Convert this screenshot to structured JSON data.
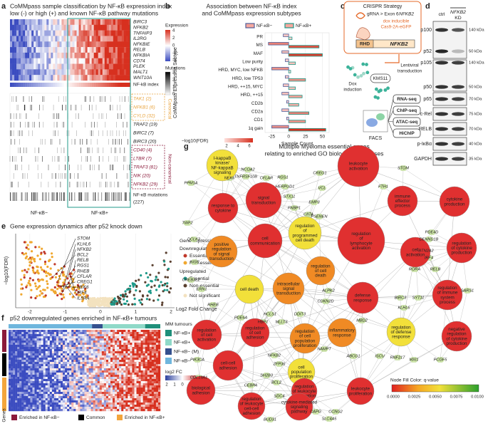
{
  "panel_a": {
    "letter": "a",
    "title": "CoMMpass sample classification by NF-κB expression index",
    "subtitle": "low (-) or high (+) and known NF-κB pathway mutations",
    "genes": [
      "BIRC3",
      "NFKB2",
      "TNFAIP3",
      "IL2RG",
      "NFKBIE",
      "RELB",
      "NFKBIA",
      "CD74",
      "PLEK",
      "MALT1",
      "WNT10A"
    ],
    "index_label": "NF-kB index",
    "expression_title": "Expression",
    "expression_ticks": [
      4,
      2,
      0,
      -2,
      -4
    ],
    "mutation_title": "Mutations",
    "mutation_ticks": [
      3,
      2,
      1,
      0
    ],
    "canonical_label": "Canonical",
    "canonical_genes": [
      "TAK1 (2)",
      "NFKB1 (6)",
      "CYLD (32)"
    ],
    "other_genes": [
      "TRAF2 (19)",
      "BIRC2 (7)",
      "BIRC3 (20)"
    ],
    "noncanonical_label": "Non-canonical",
    "noncanonical_genes": [
      "CD40 (4)",
      "LTBR (7)",
      "TRAF3 (81)",
      "NIK (20)",
      "NFKB2 (29)"
    ],
    "mutations_label": "NF-κB mutations",
    "mutations_total": "(227)",
    "groups": [
      "NF-κB−",
      "NF-κB+"
    ]
  },
  "panel_b": {
    "letter": "b",
    "title": [
      "Association between NF-κB index",
      "and CoMMpass expression subtypes"
    ],
    "y_label": "CoMMpass Expression Subtype",
    "x_label": "Sample Count",
    "categories": [
      "PR",
      "MS",
      "MAF",
      "Low purity",
      "HRD, MYC, low NFKB",
      "HRD, low TP53",
      "HRD, ++15, MYC",
      "HRD, ++15",
      "CD2b",
      "CD2a",
      "CD1",
      "1q gain"
    ],
    "series": [
      {
        "name": "NF-κB−",
        "color": "#4f5f9a",
        "values": [
          -8,
          -30,
          -10,
          -5,
          -25,
          -5,
          -8,
          -10,
          -3,
          -10,
          -3,
          -25
        ]
      },
      {
        "name": "NF-κB+",
        "color": "#1f9a8a",
        "values": [
          5,
          45,
          50,
          10,
          3,
          25,
          10,
          20,
          15,
          30,
          25,
          55
        ]
      }
    ],
    "xlim": [
      -35,
      60
    ],
    "xticks": [
      -25,
      0,
      25,
      50
    ],
    "fdr_label": "−log10(FDR)",
    "fdr_ticks": [
      2,
      4,
      6
    ]
  },
  "panel_c": {
    "letter": "c",
    "title": "CRISPR Strategy",
    "grna": "gRNA > Exon 6",
    "grna_gene": "NFKB2",
    "cas9": [
      "dox inducible",
      "Cas9-2A-eGFP"
    ],
    "domain": "RHD",
    "gene": "NFKB2",
    "dox": [
      "Dox",
      "induction"
    ],
    "lenti": [
      "Lentiviral",
      "transduction"
    ],
    "cell_line": "KMS11",
    "assays": [
      "RNA-seq",
      "ChIP-seq",
      "ATAC-seq",
      "HiChIP"
    ],
    "facs": "FACS"
  },
  "panel_d": {
    "letter": "d",
    "ctrl": "ctrl",
    "kd_gene": "NFKB2",
    "kd": "KD",
    "blots": [
      {
        "label": "p100",
        "kda": "140 kDa"
      },
      {
        "label": "p52",
        "kda": "50 kDa"
      },
      {
        "label": "p105",
        "kda": "140 kDa"
      },
      {
        "label": "p50",
        "kda": "50 kDa"
      },
      {
        "label": "p65",
        "kda": "70 kDa"
      },
      {
        "label": "c-Rel",
        "kda": "75 kDa"
      },
      {
        "label": "RELB",
        "kda": "70 kDa"
      },
      {
        "label": "p-IκBα",
        "kda": "40 kDa"
      },
      {
        "label": "GAPDH",
        "kda": "35 kDa"
      }
    ]
  },
  "panel_e": {
    "letter": "e",
    "title": "Gene expression dynamics after p52 knock down",
    "y_label": "−log10(FDR)",
    "x_label": "Log2 Fold Change",
    "xlim": [
      -2.4,
      2.1
    ],
    "xticks": [
      -2,
      -1,
      0,
      1,
      2
    ],
    "genes": [
      "STOM",
      "KLHL6",
      "NFKB2",
      "BCL2",
      "RELB",
      "RGS1",
      "RHEB",
      "CFLAR",
      "CREG1",
      "NEK6",
      "IRF4",
      "IL5RA"
    ],
    "legend_title": "Gene expression",
    "down": "Downregulated",
    "up": "Upregulated",
    "essential": "Essential",
    "non_essential": "Non-essential",
    "not_significant": "Not significant"
  },
  "panel_f": {
    "letter": "f",
    "title": "p52 downregulated genes enriched in NF-κB+ tumours",
    "tumour_label": "MM tumours",
    "groups": [
      {
        "name": "NF-κB+ (M)",
        "color": "#1f8f7a"
      },
      {
        "name": "NF-κB+",
        "color": "#8fd9c8"
      },
      {
        "name": "NF-κB− (M)",
        "color": "#34508e"
      },
      {
        "name": "NF-κB−",
        "color": "#6fb6dd"
      }
    ],
    "fc_label": "log2 FC",
    "fc_ticks": [
      "2",
      "1",
      "0",
      "1",
      "2"
    ],
    "genes_label": "Genes",
    "gene_groups": [
      {
        "name": "Enriched in NF-κB−",
        "color": "#8b1a3a"
      },
      {
        "name": "Common",
        "color": "#000000"
      },
      {
        "name": "Enriched in NF-κB+",
        "color": "#f3a53c"
      }
    ]
  },
  "panel_g": {
    "letter": "g",
    "title": [
      "Multiple Myeloma essential genes",
      "relating to enriched GO biological processes"
    ],
    "legend_title": "Node Fill Color: q-value",
    "legend_ticks": [
      "0.0000",
      "0.0025",
      "0.0050",
      "0.0075",
      "0.0100"
    ],
    "nodes": [
      {
        "label": "I-kappaB kinase/ NF-kappaB signaling",
        "color": "#f2e03a"
      },
      {
        "label": "response to cytokine",
        "color": "#e03030"
      },
      {
        "label": "signal transduction",
        "color": "#e03030"
      },
      {
        "label": "leukocyte activation",
        "color": "#e03030"
      },
      {
        "label": "immune effector process",
        "color": "#e03030"
      },
      {
        "label": "cytokine production",
        "color": "#e03030"
      },
      {
        "label": "cell communication",
        "color": "#e03030"
      },
      {
        "label": "regulation of programmed cell death",
        "color": "#f2e03a"
      },
      {
        "label": "regulation of lymphocyte activation",
        "color": "#e03030"
      },
      {
        "label": "positive regulation of signal transduction",
        "color": "#f08a24"
      },
      {
        "label": "cell activation",
        "color": "#e03030"
      },
      {
        "label": "regulation of cytokine production",
        "color": "#e03030"
      },
      {
        "label": "cell death",
        "color": "#f2e03a"
      },
      {
        "label": "intracellular signal transduction",
        "color": "#f08a24"
      },
      {
        "label": "regulation of cell death",
        "color": "#f08a24"
      },
      {
        "label": "defense response",
        "color": "#e03030"
      },
      {
        "label": "regulation of immune system process",
        "color": "#e03030"
      },
      {
        "label": "negative regulation of cytokine production",
        "color": "#e03030"
      },
      {
        "label": "regulation of cell activation",
        "color": "#e03030"
      },
      {
        "label": "regulation of cell adhesion",
        "color": "#e03030"
      },
      {
        "label": "regulation of cell population proliferation",
        "color": "#f08a24"
      },
      {
        "label": "inflammatory response",
        "color": "#f08a24"
      },
      {
        "label": "regulation of defense response",
        "color": "#f2e03a"
      },
      {
        "label": "cell-cell adhesion",
        "color": "#e03030"
      },
      {
        "label": "cell population proliferation",
        "color": "#f2e03a"
      },
      {
        "label": "biological adhesion",
        "color": "#e03030"
      },
      {
        "label": "regulation of leukocyte proliferation",
        "color": "#e03030"
      },
      {
        "label": "leukocyte proliferation",
        "color": "#e03030"
      },
      {
        "label": "regulation of leukocyte cell-cell adhesion",
        "color": "#e03030"
      },
      {
        "label": "cytokine-mediated signaling pathway",
        "color": "#e03030"
      }
    ],
    "genes": [
      "NCOA2",
      "TNFRSF10B",
      "CFLAR",
      "RGS1",
      "NEK6",
      "PPM1A",
      "HERPUD1",
      "STX11",
      "FNBP1",
      "EMP3",
      "CREG1",
      "VCL",
      "FTH1",
      "STOM",
      "CIITA",
      "TWF2",
      "DCLK2",
      "PSENEN",
      "PDE4D",
      "DENND1B",
      "BTN2A2",
      "IRF4",
      "RORA",
      "RELB",
      "INSR",
      "CREB3L2",
      "ALPK2",
      "ERN1",
      "CDKN2D",
      "SARS1",
      "RHEB",
      "HCLS1",
      "DDIT3",
      "PDE6A",
      "HBP1",
      "MLLT3",
      "BIRC3",
      "SYT11",
      "KLHL6",
      "MBD2",
      "NAMPT",
      "ABCG1",
      "ISCU",
      "RNF217",
      "MXI1",
      "PCGF5",
      "PIK3CA",
      "ZFP36",
      "NFKB2",
      "BCL2",
      "SH2B3",
      "COL19A1",
      "CEBPA",
      "SDC4",
      "CAPG",
      "CCNG2",
      "SLC4A5",
      "BUD31"
    ]
  }
}
